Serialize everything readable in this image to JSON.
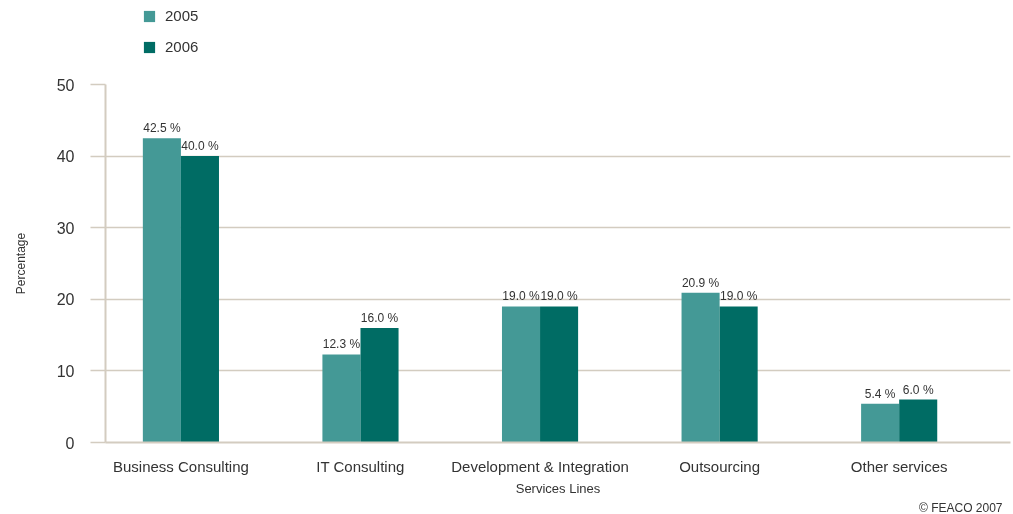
{
  "chart_data": {
    "type": "bar",
    "xlabel": "Services Lines",
    "ylabel": "Percentage",
    "annotations": [
      "© FEACO 2007"
    ],
    "categories": [
      "Business Consulting",
      "IT Consulting",
      "Development & Integration",
      "Outsourcing",
      "Other services"
    ],
    "series": [
      {
        "name": "2005",
        "color": "#449996",
        "values": [
          42.5,
          12.3,
          19.0,
          20.9,
          5.4
        ],
        "value_labels": [
          "42.5 %",
          "12.3 %",
          "19.0 %",
          "20.9 %",
          "5.4 %"
        ]
      },
      {
        "name": "2006",
        "color": "#006c64",
        "values": [
          40.0,
          16.0,
          19.0,
          19.0,
          6.0
        ],
        "value_labels": [
          "40.0 %",
          "16.0 %",
          "19.0 %",
          "19.0 %",
          "6.0 %"
        ]
      }
    ],
    "ylim": [
      0,
      50
    ],
    "yticks": [
      0,
      10,
      20,
      30,
      40,
      50
    ],
    "grid": "y",
    "legend": "top left"
  }
}
